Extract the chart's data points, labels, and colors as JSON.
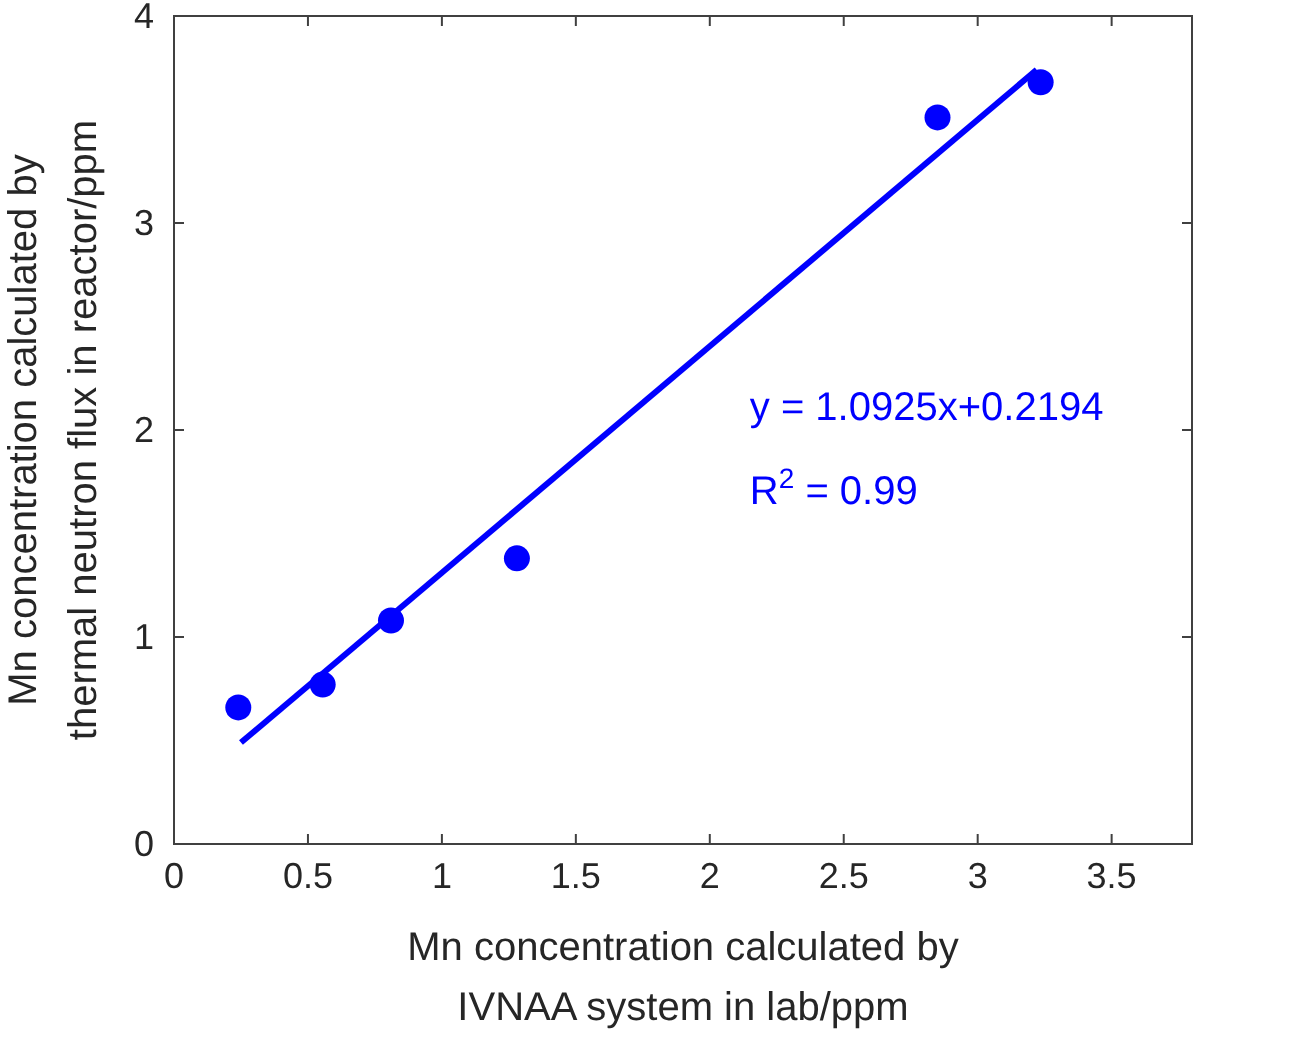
{
  "chart_data": {
    "type": "scatter",
    "xlabel": "Mn concentration calculated by\nIVNAA system in lab/ppm",
    "ylabel": "Mn concentration calculated by\nthermal neutron flux in reactor/ppm",
    "xlim": [
      0,
      3.8
    ],
    "xticks": [
      0,
      0.5,
      1,
      1.5,
      2,
      2.5,
      3,
      3.5
    ],
    "ylim": [
      0,
      4
    ],
    "yticks": [
      0,
      1,
      2,
      3,
      4
    ],
    "grid": false,
    "marker": "circle",
    "x": [
      0.24,
      0.555,
      0.81,
      1.28,
      2.85,
      3.235
    ],
    "series": [
      {
        "color": "#0000ff",
        "values": [
          0.66,
          0.77,
          1.08,
          1.38,
          3.51,
          3.68
        ]
      },
      {
        "type": "line",
        "color": "#0000ff",
        "marker": "none",
        "x": [
          0.25,
          3.22
        ],
        "values": [
          0.49,
          3.74
        ]
      }
    ],
    "annotations": [
      "y = 1.0925x+0.2194",
      "R$^{2}$ = 0.99"
    ]
  }
}
